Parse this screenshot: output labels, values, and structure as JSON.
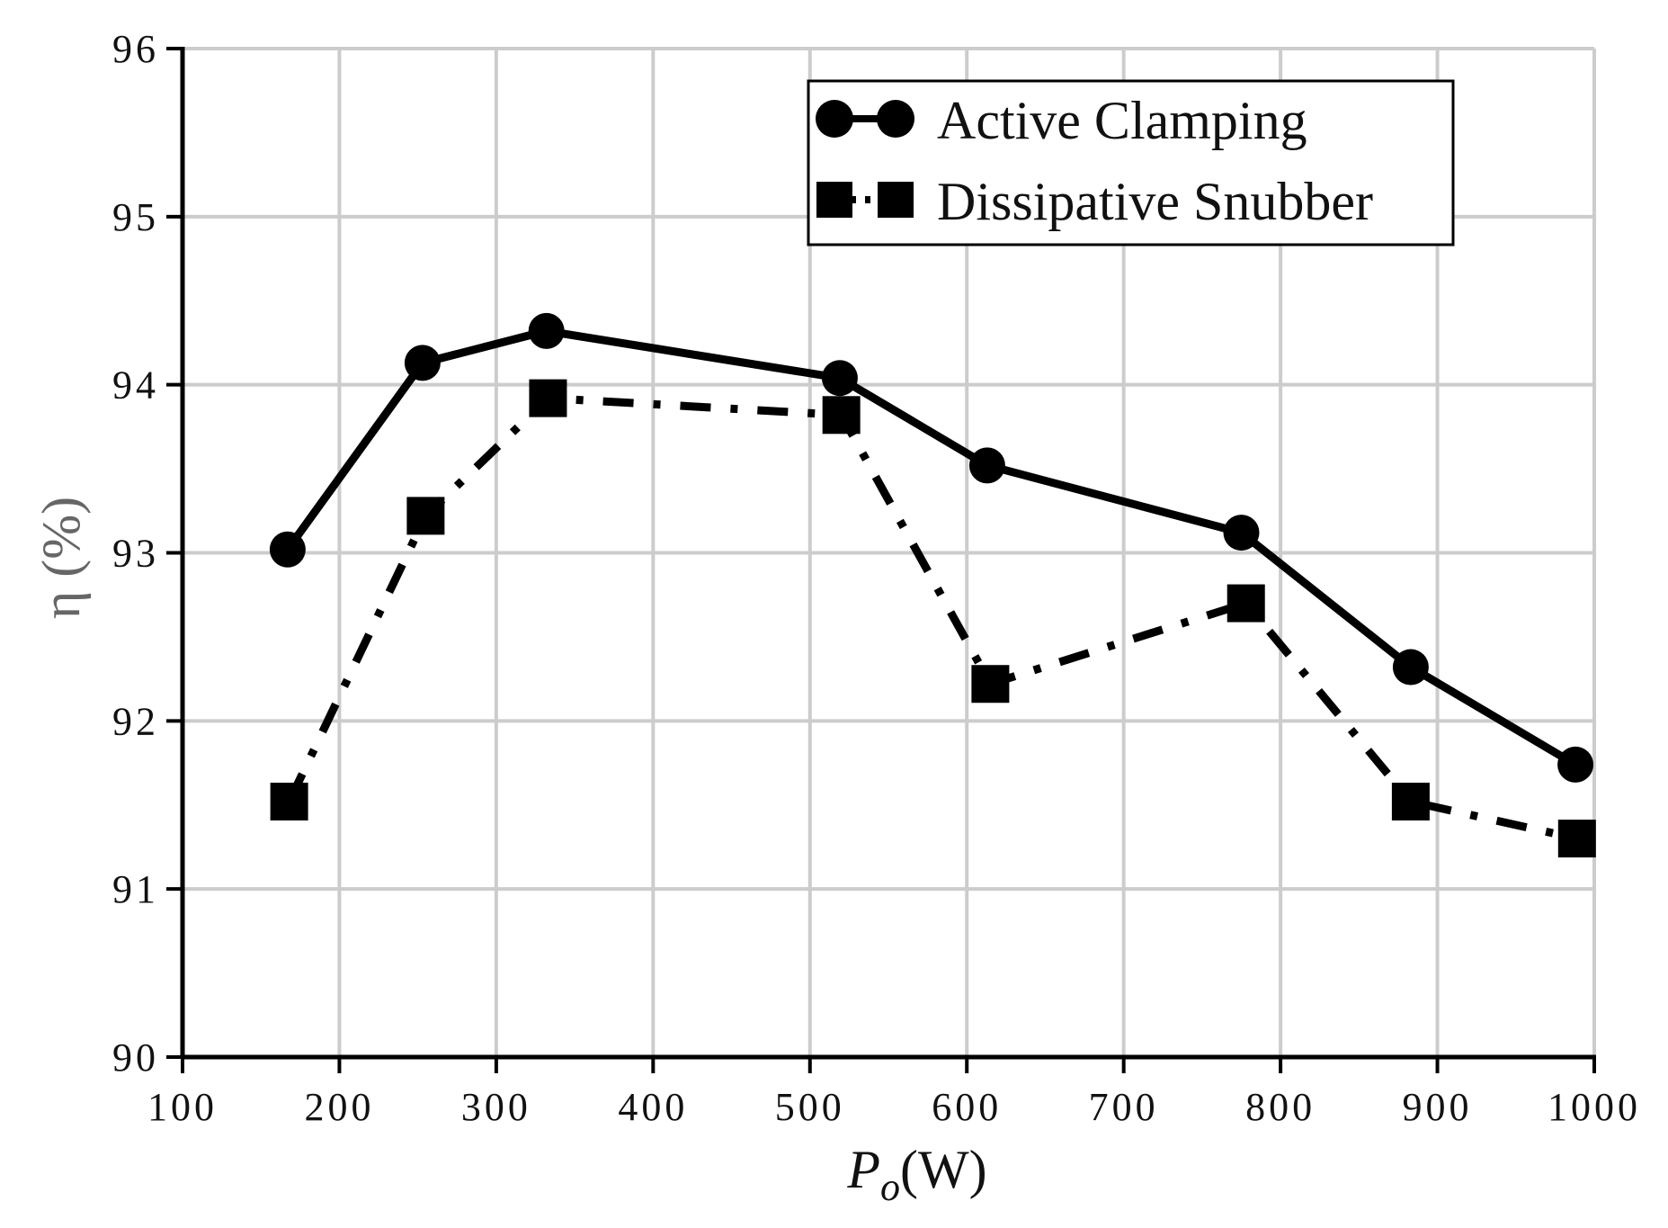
{
  "chart_data": {
    "type": "line",
    "title": "",
    "xlabel": {
      "main": "P",
      "subscript": "o",
      "unit": "(W)"
    },
    "ylabel": "η (%)",
    "xlim": [
      100,
      1000
    ],
    "ylim": [
      90,
      96
    ],
    "xticks": [
      100,
      200,
      300,
      400,
      500,
      600,
      700,
      800,
      900,
      1000
    ],
    "yticks": [
      90,
      91,
      92,
      93,
      94,
      95,
      96
    ],
    "grid": true,
    "legend_position": "top-right",
    "series": [
      {
        "name": "Active Clamping",
        "line_style": "solid",
        "marker": "circle",
        "points": [
          {
            "x": 167,
            "y": 93.02
          },
          {
            "x": 253,
            "y": 94.13
          },
          {
            "x": 332,
            "y": 94.32
          },
          {
            "x": 519,
            "y": 94.04
          },
          {
            "x": 613,
            "y": 93.52
          },
          {
            "x": 775,
            "y": 93.12
          },
          {
            "x": 883,
            "y": 92.32
          },
          {
            "x": 988,
            "y": 91.74
          }
        ]
      },
      {
        "name": "Dissipative Snubber",
        "line_style": "dash-dot",
        "marker": "square",
        "points": [
          {
            "x": 168,
            "y": 91.52
          },
          {
            "x": 255,
            "y": 93.22
          },
          {
            "x": 333,
            "y": 93.92
          },
          {
            "x": 520,
            "y": 93.82
          },
          {
            "x": 615,
            "y": 92.22
          },
          {
            "x": 778,
            "y": 92.7
          },
          {
            "x": 883,
            "y": 91.52
          },
          {
            "x": 989,
            "y": 91.3
          }
        ]
      }
    ]
  },
  "colors": {
    "ink": "#000000",
    "grid": "#cccccc",
    "ylabel": "#666666"
  }
}
